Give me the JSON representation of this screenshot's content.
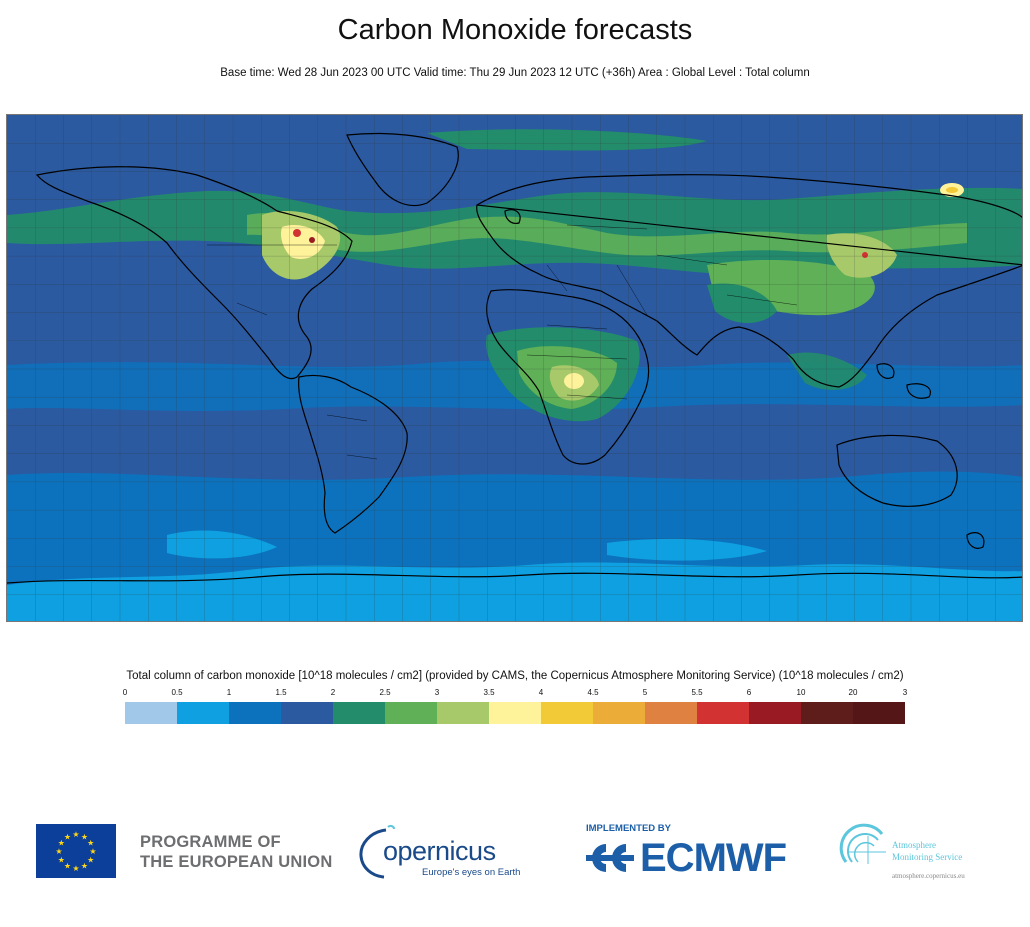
{
  "header": {
    "title": "Carbon Monoxide forecasts",
    "subtitle": "Base time: Wed 28 Jun 2023 00 UTC Valid time: Thu 29 Jun 2023 12 UTC (+36h) Area : Global Level : Total column"
  },
  "map": {
    "ocean_background_color": "#2b5aa0",
    "grid": true,
    "features": [
      "coastlines",
      "country-borders",
      "lat-lon-graticule"
    ]
  },
  "legend": {
    "caption": "Total column of carbon monoxide [10^18 molecules / cm2] (provided by CAMS, the Copernicus Atmosphere Monitoring Service) (10^18 molecules / cm2)",
    "ticks": [
      "0",
      "0.5",
      "1",
      "1.5",
      "2",
      "2.5",
      "3",
      "3.5",
      "4",
      "4.5",
      "5",
      "5.5",
      "6",
      "10",
      "20",
      "3"
    ],
    "colors": [
      "#a1c8e8",
      "#0ea0e0",
      "#0d72bd",
      "#2b5aa0",
      "#238c6a",
      "#5fb057",
      "#a7c96a",
      "#fef29a",
      "#f2c936",
      "#ecad38",
      "#df8140",
      "#d23232",
      "#991a22",
      "#5e1c1b",
      "#541616"
    ]
  },
  "logos": {
    "eu_line1": "PROGRAMME OF",
    "eu_line2": "THE EUROPEAN UNION",
    "copernicus_word": "opernicus",
    "copernicus_tagline": "Europe's eyes on Earth",
    "implemented_by": "IMPLEMENTED BY",
    "ecmwf": "ECMWF",
    "ams_line1": "Atmosphere",
    "ams_line2": "Monitoring Service",
    "ams_url": "atmosphere.copernicus.eu"
  }
}
